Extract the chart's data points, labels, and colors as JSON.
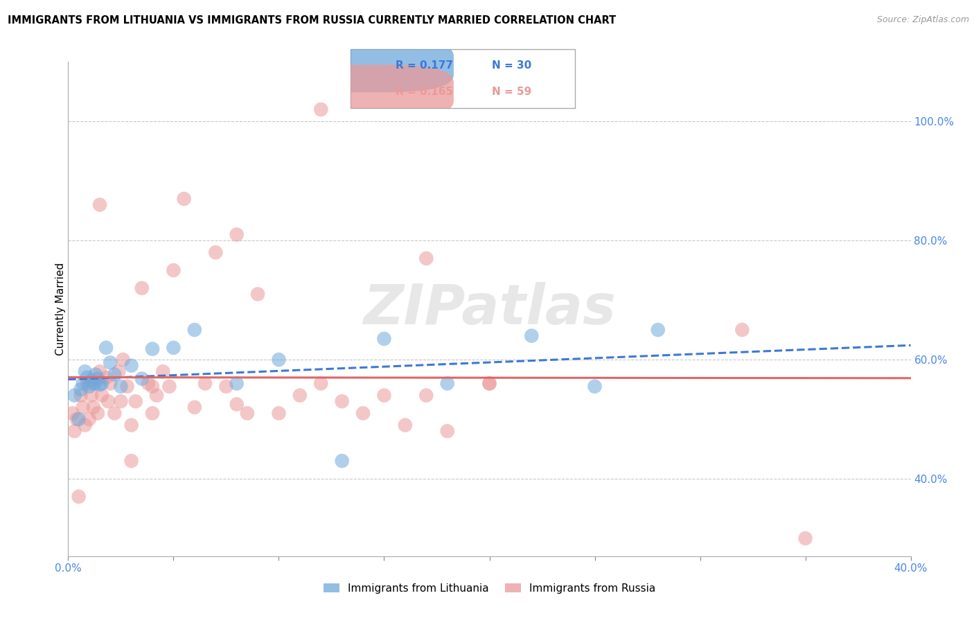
{
  "title": "IMMIGRANTS FROM LITHUANIA VS IMMIGRANTS FROM RUSSIA CURRENTLY MARRIED CORRELATION CHART",
  "source": "Source: ZipAtlas.com",
  "ylabel": "Currently Married",
  "xlim": [
    0.0,
    0.4
  ],
  "ylim": [
    0.27,
    1.1
  ],
  "yticks": [
    0.4,
    0.6,
    0.8,
    1.0
  ],
  "ytick_labels": [
    "40.0%",
    "60.0%",
    "80.0%",
    "100.0%"
  ],
  "xticks": [
    0.0,
    0.05,
    0.1,
    0.15,
    0.2,
    0.25,
    0.3,
    0.35,
    0.4
  ],
  "xtick_labels": [
    "0.0%",
    "",
    "",
    "",
    "",
    "",
    "",
    "",
    "40.0%"
  ],
  "color_lithuania": "#6fa8dc",
  "color_russia": "#ea9999",
  "color_line_lithuania": "#3c78d8",
  "color_line_russia": "#e06666",
  "color_axis_ticks": "#4a86e8",
  "watermark": "ZIPatlas",
  "lithuania_x": [
    0.003,
    0.005,
    0.006,
    0.007,
    0.008,
    0.009,
    0.01,
    0.011,
    0.012,
    0.013,
    0.014,
    0.015,
    0.016,
    0.018,
    0.02,
    0.022,
    0.025,
    0.03,
    0.035,
    0.04,
    0.05,
    0.06,
    0.08,
    0.1,
    0.13,
    0.15,
    0.18,
    0.22,
    0.25,
    0.28
  ],
  "lithuania_y": [
    0.54,
    0.5,
    0.55,
    0.56,
    0.58,
    0.57,
    0.555,
    0.565,
    0.56,
    0.575,
    0.568,
    0.558,
    0.56,
    0.62,
    0.595,
    0.575,
    0.555,
    0.59,
    0.568,
    0.618,
    0.62,
    0.65,
    0.56,
    0.6,
    0.43,
    0.635,
    0.56,
    0.64,
    0.555,
    0.65
  ],
  "russia_x": [
    0.002,
    0.003,
    0.004,
    0.005,
    0.006,
    0.007,
    0.008,
    0.009,
    0.01,
    0.011,
    0.012,
    0.013,
    0.014,
    0.015,
    0.016,
    0.018,
    0.019,
    0.02,
    0.022,
    0.024,
    0.025,
    0.026,
    0.028,
    0.03,
    0.032,
    0.035,
    0.038,
    0.04,
    0.042,
    0.045,
    0.048,
    0.05,
    0.055,
    0.06,
    0.065,
    0.07,
    0.075,
    0.08,
    0.085,
    0.09,
    0.1,
    0.11,
    0.12,
    0.13,
    0.14,
    0.15,
    0.16,
    0.17,
    0.18,
    0.2,
    0.015,
    0.04,
    0.08,
    0.12,
    0.17,
    0.03,
    0.2,
    0.32,
    0.35
  ],
  "russia_y": [
    0.51,
    0.48,
    0.5,
    0.37,
    0.54,
    0.52,
    0.49,
    0.56,
    0.5,
    0.54,
    0.52,
    0.56,
    0.51,
    0.58,
    0.54,
    0.57,
    0.53,
    0.56,
    0.51,
    0.58,
    0.53,
    0.6,
    0.555,
    0.49,
    0.53,
    0.72,
    0.56,
    0.51,
    0.54,
    0.58,
    0.555,
    0.75,
    0.87,
    0.52,
    0.56,
    0.78,
    0.555,
    0.525,
    0.51,
    0.71,
    0.51,
    0.54,
    0.56,
    0.53,
    0.51,
    0.54,
    0.49,
    0.54,
    0.48,
    0.56,
    0.86,
    0.555,
    0.81,
    1.02,
    0.77,
    0.43,
    0.56,
    0.65,
    0.3
  ]
}
